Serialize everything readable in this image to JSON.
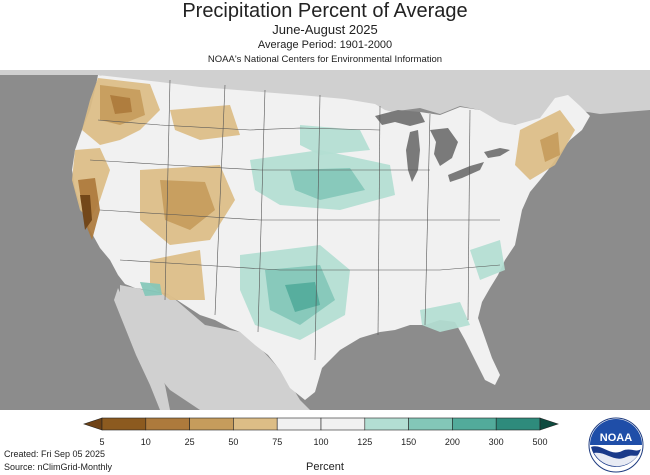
{
  "title": "Precipitation Percent of Average",
  "subtitle": "June-August 2025",
  "average_period": "Average Period: 1901-2000",
  "organization": "NOAA's National Centers for Environmental Information",
  "legend": {
    "unit_label": "Percent",
    "ticks": [
      "5",
      "10",
      "25",
      "50",
      "75",
      "100",
      "125",
      "150",
      "200",
      "300",
      "500"
    ],
    "colors": [
      "#8c5a1f",
      "#ad7a3c",
      "#c69c5c",
      "#dcbd86",
      "#f1f1f1",
      "#f1f1f1",
      "#b3ded3",
      "#83c7b8",
      "#52ab9b",
      "#2e8b7c",
      "#176a5c"
    ],
    "under_color": "#6e4216",
    "over_color": "#0e4a3f"
  },
  "footer": {
    "created": "Created: Fri Sep 05 2025",
    "source": "Source: nClimGrid-Monthly"
  },
  "logo_text": "NOAA",
  "colors": {
    "ocean": "#8c8c8c",
    "land_outside": "#d0d0d0",
    "near_normal": "#f1f1f1",
    "lakes": "#7a7a7a",
    "state_lines": "#555555"
  }
}
